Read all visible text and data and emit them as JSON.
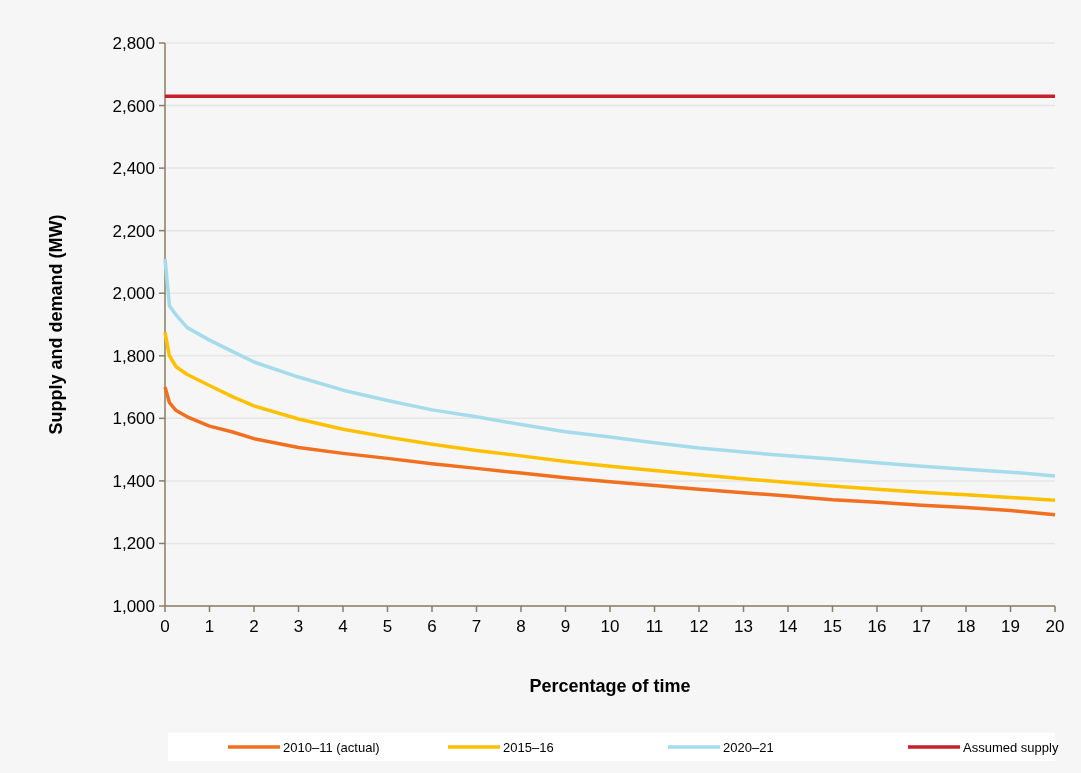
{
  "chart_data": {
    "type": "line",
    "xlabel": "Percentage of time",
    "ylabel": "Supply and demand (MW)",
    "xlim": [
      0,
      20
    ],
    "xticks": [
      0,
      1,
      2,
      3,
      4,
      5,
      6,
      7,
      8,
      9,
      10,
      11,
      12,
      13,
      14,
      15,
      16,
      17,
      18,
      19,
      20
    ],
    "ylim": [
      1000,
      2800
    ],
    "yticks": [
      {
        "value": 1000,
        "label": "1,000"
      },
      {
        "value": 1200,
        "label": "1,200"
      },
      {
        "value": 1400,
        "label": "1,400"
      },
      {
        "value": 1600,
        "label": "1,600"
      },
      {
        "value": 1800,
        "label": "1,800"
      },
      {
        "value": 2000,
        "label": "2,000"
      },
      {
        "value": 2200,
        "label": "2,200"
      },
      {
        "value": 2400,
        "label": "2,400"
      },
      {
        "value": 2600,
        "label": "2,600"
      },
      {
        "value": 2800,
        "label": "2,800"
      }
    ],
    "grid": "y",
    "legend": "bottom",
    "marker": "none",
    "line_style": "solid",
    "x": [
      0,
      0.1,
      0.25,
      0.5,
      1,
      1.5,
      2,
      3,
      4,
      5,
      6,
      7,
      8,
      9,
      10,
      11,
      12,
      13,
      14,
      15,
      16,
      17,
      18,
      19,
      20
    ],
    "series": [
      {
        "name": "2010–11  (actual)",
        "color": "#f07020",
        "values": [
          1700,
          1650,
          1625,
          1605,
          1575,
          1557,
          1535,
          1507,
          1488,
          1472,
          1455,
          1440,
          1425,
          1410,
          1397,
          1385,
          1373,
          1362,
          1352,
          1340,
          1332,
          1322,
          1315,
          1305,
          1292
        ]
      },
      {
        "name": "2015–16",
        "color": "#ffc000",
        "values": [
          1875,
          1800,
          1765,
          1740,
          1705,
          1670,
          1640,
          1598,
          1565,
          1540,
          1517,
          1497,
          1480,
          1462,
          1447,
          1433,
          1420,
          1407,
          1395,
          1384,
          1373,
          1364,
          1356,
          1347,
          1338
        ]
      },
      {
        "name": "2020–21",
        "color": "#a5dcec",
        "values": [
          2110,
          1960,
          1930,
          1890,
          1850,
          1815,
          1780,
          1732,
          1690,
          1657,
          1627,
          1605,
          1580,
          1557,
          1540,
          1522,
          1505,
          1492,
          1480,
          1470,
          1458,
          1447,
          1437,
          1428,
          1416
        ]
      },
      {
        "name": "Assumed supply",
        "color": "#c8202a",
        "x": [
          0,
          20
        ],
        "values": [
          2630,
          2630
        ]
      }
    ]
  }
}
